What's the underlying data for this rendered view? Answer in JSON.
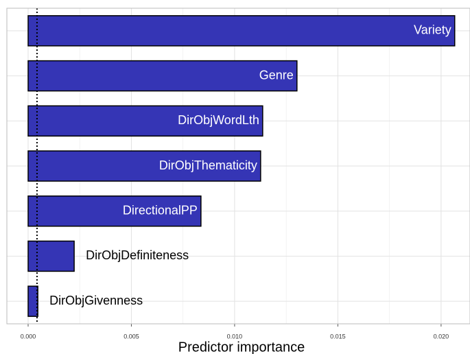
{
  "chart_data": {
    "type": "barh",
    "x_label": "Predictor importance",
    "categories": [
      "Variety",
      "Genre",
      "DirObjWordLth",
      "DirObjThematicity",
      "DirectionalPP",
      "DirObjDefiniteness",
      "DirObjGivenness"
    ],
    "values": [
      0.02066,
      0.01302,
      0.01136,
      0.01126,
      0.00837,
      0.00223,
      0.00047
    ],
    "color": "#3535b5",
    "xlim": [
      -0.00103,
      0.0214
    ],
    "xticks": [
      {
        "value": 0,
        "label": "0.000"
      },
      {
        "value": 0.005,
        "label": "0.005"
      },
      {
        "value": 0.01,
        "label": "0.010"
      },
      {
        "value": 0.015,
        "label": "0.015"
      },
      {
        "value": 0.02,
        "label": "0.020"
      }
    ],
    "reference_line": 0.00043,
    "grid": true,
    "minor_grid": true
  }
}
